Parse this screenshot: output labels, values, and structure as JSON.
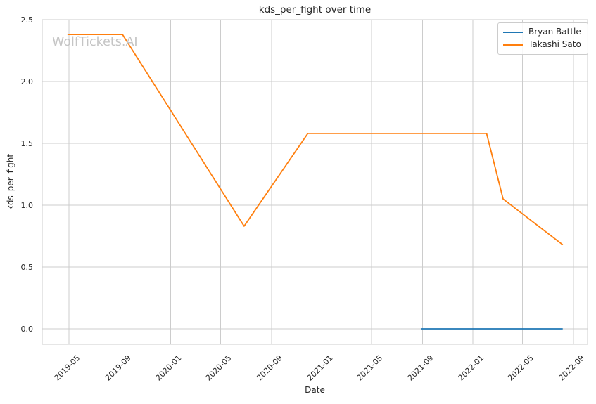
{
  "chart": {
    "title": "kds_per_fight over time",
    "xlabel": "Date",
    "ylabel": "kds_per_fight",
    "watermark": "WolfTickets.AI"
  },
  "chart_data": {
    "type": "line",
    "title": "kds_per_fight over time",
    "xlabel": "Date",
    "ylabel": "kds_per_fight",
    "grid": true,
    "legend_position": "upper-right",
    "x_ticks": [
      "2019-05",
      "2019-09",
      "2020-01",
      "2020-05",
      "2020-09",
      "2021-01",
      "2021-05",
      "2021-09",
      "2022-01",
      "2022-05",
      "2022-09"
    ],
    "y_ticks": [
      0.0,
      0.5,
      1.0,
      1.5,
      2.0,
      2.5
    ],
    "xlim": [
      "2019-02-25",
      "2022-10-05"
    ],
    "ylim": [
      -0.125,
      2.5
    ],
    "series": [
      {
        "name": "Bryan Battle",
        "color": "#1f77b4",
        "points": [
          [
            "2021-08-28",
            0.0
          ],
          [
            "2022-08-06",
            0.0
          ]
        ]
      },
      {
        "name": "Takashi Sato",
        "color": "#ff7f0e",
        "points": [
          [
            "2019-04-27",
            2.38
          ],
          [
            "2019-09-07",
            2.38
          ],
          [
            "2020-06-27",
            0.83
          ],
          [
            "2020-11-28",
            1.58
          ],
          [
            "2022-02-03",
            1.58
          ],
          [
            "2022-03-15",
            1.05
          ],
          [
            "2022-08-06",
            0.68
          ]
        ]
      }
    ]
  },
  "colors": {
    "grid": "#cccccc",
    "text": "#262626",
    "watermark": "#c5c5c5",
    "series_blue": "#1f77b4",
    "series_orange": "#ff7f0e"
  }
}
